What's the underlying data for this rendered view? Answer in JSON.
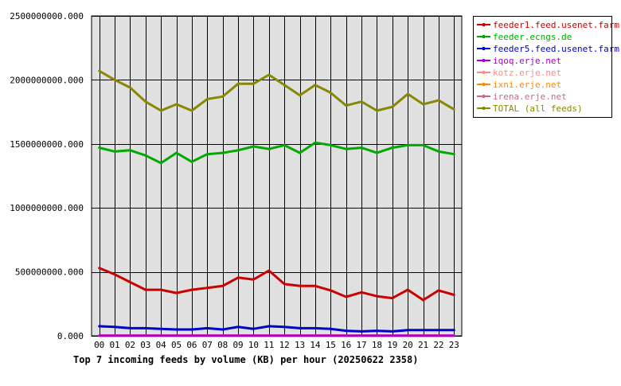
{
  "chart_data": {
    "type": "line",
    "title": "Top 7 incoming feeds by volume (KB) per hour (20250622 2358)",
    "xlabel": "",
    "ylabel": "",
    "categories": [
      "00",
      "01",
      "02",
      "03",
      "04",
      "05",
      "06",
      "07",
      "08",
      "09",
      "10",
      "11",
      "12",
      "13",
      "14",
      "15",
      "16",
      "17",
      "18",
      "19",
      "20",
      "21",
      "22",
      "23"
    ],
    "ylim": [
      0,
      2500000000
    ],
    "yticks": [
      "0.000",
      "500000000.000",
      "1000000000.000",
      "1500000000.000",
      "2000000000.000",
      "2500000000.000"
    ],
    "grid": true,
    "legend_position": "top-right",
    "series": [
      {
        "name": "feeder1.feed.usenet.farm",
        "color": "#cc0000",
        "values": [
          530000000,
          480000000,
          420000000,
          360000000,
          360000000,
          335000000,
          360000000,
          375000000,
          390000000,
          455000000,
          440000000,
          510000000,
          405000000,
          390000000,
          390000000,
          355000000,
          305000000,
          340000000,
          310000000,
          295000000,
          360000000,
          280000000,
          355000000,
          320000000
        ]
      },
      {
        "name": "feeder.ecngs.de",
        "color": "#00aa00",
        "values": [
          1470000000,
          1440000000,
          1450000000,
          1410000000,
          1350000000,
          1430000000,
          1360000000,
          1420000000,
          1430000000,
          1450000000,
          1480000000,
          1460000000,
          1490000000,
          1430000000,
          1510000000,
          1490000000,
          1460000000,
          1470000000,
          1430000000,
          1470000000,
          1490000000,
          1490000000,
          1440000000,
          1420000000
        ]
      },
      {
        "name": "feeder5.feed.usenet.farm",
        "color": "#0000cc",
        "values": [
          75000000,
          70000000,
          60000000,
          60000000,
          55000000,
          50000000,
          50000000,
          60000000,
          50000000,
          70000000,
          55000000,
          75000000,
          70000000,
          60000000,
          60000000,
          55000000,
          40000000,
          35000000,
          40000000,
          35000000,
          45000000,
          45000000,
          45000000,
          45000000
        ]
      },
      {
        "name": "iqoq.erje.net",
        "color": "#aa00cc",
        "values": [
          2000000,
          2000000,
          2000000,
          2000000,
          2000000,
          2000000,
          2000000,
          2000000,
          2000000,
          2000000,
          2000000,
          2000000,
          2000000,
          2000000,
          2000000,
          2000000,
          2000000,
          2000000,
          2000000,
          2000000,
          2000000,
          2000000,
          2000000,
          2000000
        ]
      },
      {
        "name": "kotz.erje.net",
        "color": "#ff8888",
        "values": [
          1000000,
          1000000,
          1000000,
          1000000,
          1000000,
          1000000,
          1000000,
          1000000,
          1000000,
          1000000,
          1000000,
          1000000,
          1000000,
          1000000,
          1000000,
          1000000,
          1000000,
          1000000,
          1000000,
          1000000,
          1000000,
          1000000,
          1000000,
          1000000
        ]
      },
      {
        "name": "ixni.erje.net",
        "color": "#ff8800",
        "values": [
          1000000,
          1000000,
          1000000,
          1000000,
          1000000,
          1000000,
          1000000,
          1000000,
          1000000,
          1000000,
          1000000,
          1000000,
          1000000,
          1000000,
          1000000,
          1000000,
          1000000,
          1000000,
          1000000,
          1000000,
          1000000,
          1000000,
          1000000,
          1000000
        ]
      },
      {
        "name": "irena.erje.net",
        "color": "#cc6688",
        "values": [
          1000000,
          1000000,
          1000000,
          1000000,
          1000000,
          1000000,
          1000000,
          1000000,
          1000000,
          1000000,
          1000000,
          1000000,
          1000000,
          1000000,
          1000000,
          1000000,
          1000000,
          1000000,
          1000000,
          1000000,
          1000000,
          1000000,
          1000000,
          1000000
        ]
      },
      {
        "name": "TOTAL (all feeds)",
        "color": "#888800",
        "values": [
          2070000000,
          2000000000,
          1940000000,
          1830000000,
          1760000000,
          1810000000,
          1760000000,
          1850000000,
          1870000000,
          1970000000,
          1970000000,
          2040000000,
          1960000000,
          1880000000,
          1960000000,
          1900000000,
          1800000000,
          1830000000,
          1760000000,
          1790000000,
          1890000000,
          1810000000,
          1840000000,
          1770000000
        ]
      }
    ]
  },
  "colors": {
    "plot_background": "#e0e0e0",
    "grid": "#000000"
  }
}
